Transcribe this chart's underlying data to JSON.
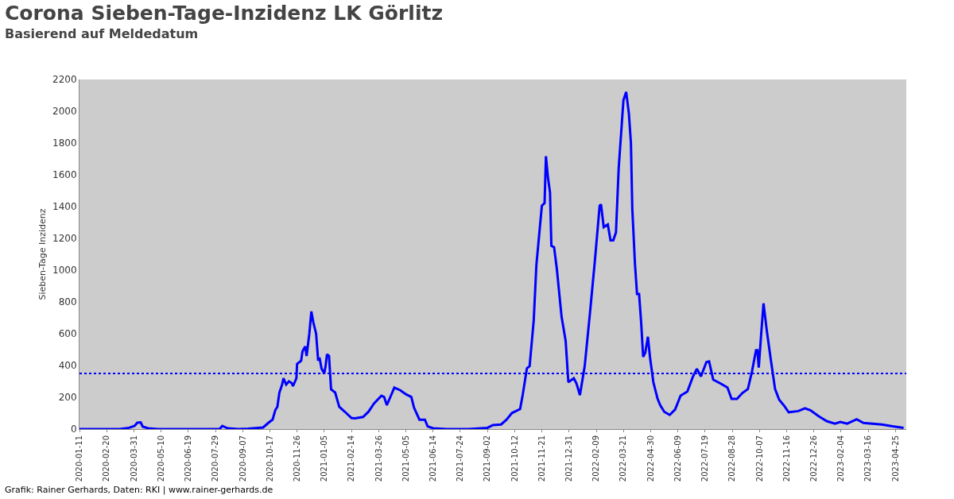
{
  "chart_data": {
    "type": "line",
    "title": "Corona Sieben-Tage-Inzidenz LK Görlitz",
    "subtitle": "Basierend auf Meldedatum",
    "ylabel": "Sieben-Tage Inzidenz",
    "annotations": [
      "Grafik: Rainer Gerhards, Daten: RKI | www.rainer-gerhards.de"
    ],
    "x": [
      "2020-01-11",
      "2020-03-10",
      "2020-03-24",
      "2020-04-01",
      "2020-04-05",
      "2020-04-10",
      "2020-04-13",
      "2020-04-21",
      "2020-05-05",
      "2020-08-04",
      "2020-08-08",
      "2020-08-16",
      "2020-09-01",
      "2020-09-15",
      "2020-10-07",
      "2020-10-15",
      "2020-10-21",
      "2020-10-25",
      "2020-10-28",
      "2020-10-31",
      "2020-11-04",
      "2020-11-06",
      "2020-11-10",
      "2020-11-14",
      "2020-11-18",
      "2020-11-20",
      "2020-11-25",
      "2020-11-26",
      "2020-12-02",
      "2020-12-04",
      "2020-12-08",
      "2020-12-10",
      "2020-12-14",
      "2020-12-17",
      "2020-12-20",
      "2020-12-24",
      "2020-12-27",
      "2020-12-29",
      "2021-01-01",
      "2021-01-05",
      "2021-01-07",
      "2021-01-09",
      "2021-01-12",
      "2021-01-15",
      "2021-01-21",
      "2021-01-27",
      "2021-02-04",
      "2021-02-14",
      "2021-02-19",
      "2021-03-03",
      "2021-03-11",
      "2021-03-19",
      "2021-03-30",
      "2021-04-03",
      "2021-04-07",
      "2021-04-13",
      "2021-04-18",
      "2021-04-27",
      "2021-05-05",
      "2021-05-13",
      "2021-05-17",
      "2021-05-25",
      "2021-06-02",
      "2021-06-06",
      "2021-06-14",
      "2021-07-04",
      "2021-08-05",
      "2021-09-02",
      "2021-09-10",
      "2021-09-22",
      "2021-09-30",
      "2021-10-08",
      "2021-10-20",
      "2021-10-24",
      "2021-10-30",
      "2021-11-03",
      "2021-11-09",
      "2021-11-13",
      "2021-11-17",
      "2021-11-21",
      "2021-11-25",
      "2021-11-27",
      "2021-11-30",
      "2021-12-03",
      "2021-12-05",
      "2021-12-09",
      "2021-12-13",
      "2021-12-20",
      "2021-12-26",
      "2021-12-30",
      "2022-01-07",
      "2022-01-11",
      "2022-01-16",
      "2022-01-23",
      "2022-01-31",
      "2022-02-07",
      "2022-02-14",
      "2022-02-16",
      "2022-02-20",
      "2022-02-26",
      "2022-03-02",
      "2022-03-06",
      "2022-03-10",
      "2022-03-14",
      "2022-03-21",
      "2022-03-25",
      "2022-03-29",
      "2022-04-01",
      "2022-04-03",
      "2022-04-07",
      "2022-04-10",
      "2022-04-13",
      "2022-04-16",
      "2022-04-19",
      "2022-04-22",
      "2022-04-26",
      "2022-04-29",
      "2022-05-04",
      "2022-05-10",
      "2022-05-14",
      "2022-05-20",
      "2022-05-28",
      "2022-06-05",
      "2022-06-13",
      "2022-06-23",
      "2022-07-01",
      "2022-07-07",
      "2022-07-13",
      "2022-07-21",
      "2022-07-25",
      "2022-07-31",
      "2022-08-11",
      "2022-08-21",
      "2022-08-27",
      "2022-09-04",
      "2022-09-12",
      "2022-09-20",
      "2022-09-26",
      "2022-10-02",
      "2022-10-04",
      "2022-10-06",
      "2022-10-10",
      "2022-10-13",
      "2022-10-18",
      "2022-10-24",
      "2022-10-30",
      "2022-11-05",
      "2022-11-13",
      "2022-11-19",
      "2022-12-03",
      "2022-12-13",
      "2022-12-21",
      "2023-01-02",
      "2023-01-14",
      "2023-01-26",
      "2023-02-03",
      "2023-02-13",
      "2023-02-27",
      "2023-03-09",
      "2023-04-05",
      "2023-04-21",
      "2023-05-07"
    ],
    "series": [
      {
        "color": "#0000ff",
        "values": [
          0,
          0,
          8,
          20,
          40,
          42,
          15,
          5,
          0,
          0,
          20,
          5,
          0,
          2,
          10,
          40,
          60,
          120,
          140,
          230,
          280,
          320,
          280,
          300,
          290,
          270,
          320,
          410,
          430,
          490,
          520,
          460,
          600,
          740,
          670,
          600,
          430,
          450,
          380,
          350,
          400,
          470,
          460,
          250,
          230,
          140,
          110,
          70,
          67,
          76,
          109,
          160,
          210,
          202,
          151,
          210,
          261,
          244,
          219,
          202,
          135,
          59,
          59,
          17,
          5,
          0,
          0,
          8,
          25,
          29,
          59,
          101,
          126,
          219,
          382,
          396,
          682,
          1035,
          1220,
          1405,
          1422,
          1717,
          1582,
          1489,
          1153,
          1144,
          1010,
          707,
          555,
          295,
          320,
          286,
          214,
          396,
          741,
          1060,
          1405,
          1414,
          1271,
          1288,
          1187,
          1187,
          1237,
          1641,
          2070,
          2121,
          1986,
          1800,
          1388,
          1035,
          850,
          850,
          673,
          454,
          480,
          581,
          454,
          295,
          194,
          151,
          109,
          89,
          123,
          210,
          236,
          328,
          379,
          331,
          421,
          426,
          311,
          286,
          261,
          190,
          190,
          227,
          252,
          362,
          496,
          496,
          387,
          623,
          791,
          614,
          429,
          252,
          185,
          143,
          106,
          113,
          131,
          118,
          81,
          50,
          34,
          45,
          34,
          62,
          39,
          29,
          17,
          8
        ]
      }
    ],
    "xlim": [
      "2020-01-11",
      "2023-05-11"
    ],
    "xticks": [
      "2020-01-11",
      "2020-02-20",
      "2020-03-31",
      "2020-05-10",
      "2020-06-19",
      "2020-07-29",
      "2020-09-07",
      "2020-10-17",
      "2020-11-26",
      "2021-01-05",
      "2021-02-14",
      "2021-03-26",
      "2021-05-05",
      "2021-06-14",
      "2021-07-24",
      "2021-09-02",
      "2021-10-12",
      "2021-11-21",
      "2021-12-31",
      "2022-02-09",
      "2022-03-21",
      "2022-04-30",
      "2022-06-09",
      "2022-07-19",
      "2022-08-28",
      "2022-10-07",
      "2022-11-16",
      "2022-12-26",
      "2023-02-04",
      "2023-03-16",
      "2023-04-25"
    ],
    "ylim": [
      0,
      2200
    ],
    "yticks": [
      0,
      200,
      400,
      600,
      800,
      1000,
      1200,
      1400,
      1600,
      1800,
      2000,
      2200
    ],
    "ref_lines": [
      {
        "axis": "y",
        "value": 350,
        "color": "#0000ff",
        "line_style": "dotted"
      }
    ],
    "grid": false,
    "marker": "none",
    "line_style": "solid"
  }
}
